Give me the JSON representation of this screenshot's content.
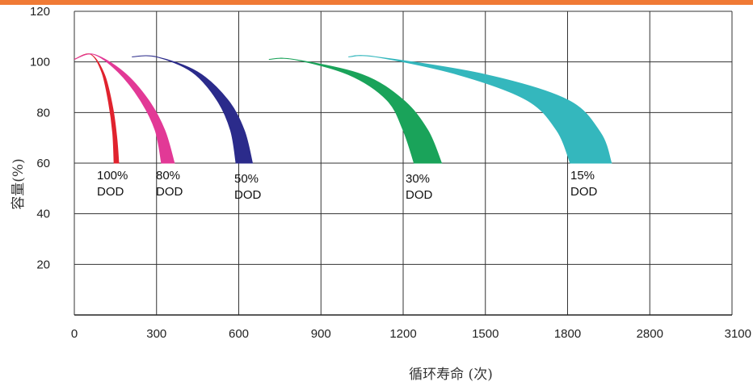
{
  "chart_data": {
    "type": "area",
    "xlabel": "循环寿命 (次)",
    "ylabel": "容量(%)",
    "x_tick_labels": [
      "0",
      "300",
      "600",
      "900",
      "1200",
      "1500",
      "1800",
      "2800",
      "3100"
    ],
    "y_ticks": [
      20,
      40,
      60,
      80,
      100,
      120
    ],
    "ylim": [
      0,
      120
    ],
    "grid": true,
    "series": [
      {
        "name": "100% DOD",
        "label_line1": "100%",
        "label_line2": "DOD",
        "color": "#e0232e",
        "upper": [
          [
            0,
            101
          ],
          [
            60,
            103
          ],
          [
            110,
            95
          ],
          [
            140,
            82
          ],
          [
            155,
            70
          ],
          [
            162,
            60
          ]
        ],
        "lower": [
          [
            0,
            101
          ],
          [
            60,
            103
          ],
          [
            100,
            96
          ],
          [
            125,
            84
          ],
          [
            140,
            72
          ],
          [
            145,
            60
          ]
        ]
      },
      {
        "name": "80% DOD",
        "label_line1": "80%",
        "label_line2": "DOD",
        "color": "#e23996",
        "upper": [
          [
            0,
            101
          ],
          [
            70,
            103
          ],
          [
            180,
            96
          ],
          [
            270,
            85
          ],
          [
            330,
            73
          ],
          [
            365,
            60
          ]
        ],
        "lower": [
          [
            0,
            101
          ],
          [
            70,
            103
          ],
          [
            160,
            96
          ],
          [
            240,
            85
          ],
          [
            295,
            73
          ],
          [
            318,
            60
          ]
        ]
      },
      {
        "name": "50% DOD",
        "label_line1": "50%",
        "label_line2": "DOD",
        "color": "#2b2b8b",
        "upper": [
          [
            210,
            102
          ],
          [
            300,
            102
          ],
          [
            450,
            96
          ],
          [
            560,
            85
          ],
          [
            620,
            73
          ],
          [
            650,
            60
          ]
        ],
        "lower": [
          [
            210,
            102
          ],
          [
            300,
            102
          ],
          [
            430,
            96
          ],
          [
            520,
            85
          ],
          [
            570,
            73
          ],
          [
            590,
            60
          ]
        ]
      },
      {
        "name": "30% DOD",
        "label_line1": "30%",
        "label_line2": "DOD",
        "color": "#1aa35a",
        "upper": [
          [
            710,
            101
          ],
          [
            800,
            101
          ],
          [
            1050,
            95
          ],
          [
            1200,
            85
          ],
          [
            1290,
            73
          ],
          [
            1340,
            60
          ]
        ],
        "lower": [
          [
            710,
            101
          ],
          [
            800,
            101
          ],
          [
            1000,
            95
          ],
          [
            1140,
            85
          ],
          [
            1200,
            73
          ],
          [
            1240,
            60
          ]
        ]
      },
      {
        "name": "15% DOD",
        "label_line1": "15%",
        "label_line2": "DOD",
        "color": "#34b7bd",
        "upper": [
          [
            1000,
            102
          ],
          [
            1100,
            102
          ],
          [
            1500,
            95
          ],
          [
            1800,
            85
          ],
          [
            1920,
            72
          ],
          [
            1960,
            60
          ]
        ],
        "lower": [
          [
            1000,
            102
          ],
          [
            1100,
            102
          ],
          [
            1400,
            95
          ],
          [
            1650,
            85
          ],
          [
            1760,
            73
          ],
          [
            1810,
            60
          ]
        ]
      }
    ]
  }
}
